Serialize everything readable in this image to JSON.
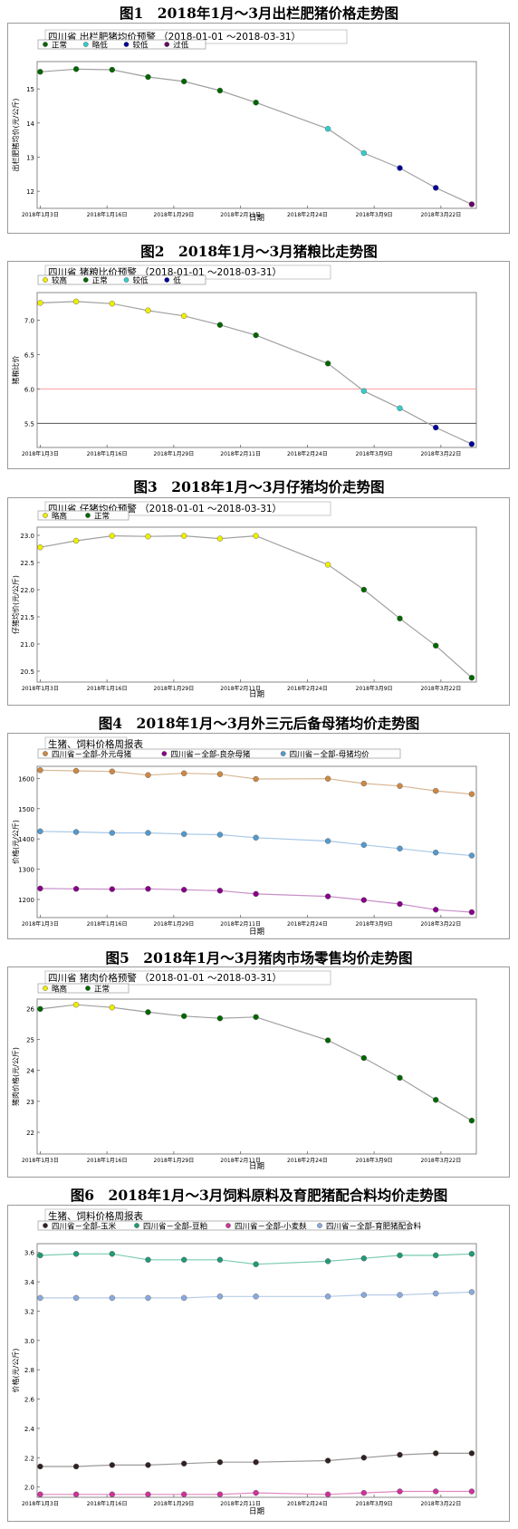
{
  "charts": [
    {
      "caption": "图1　2018年1月～3月出栏肥猪价格走势图",
      "chart_data": {
        "type": "line",
        "title": "四川省 出栏肥猪均价预警",
        "date_range": "（2018-01-01 ～2018-03-31）",
        "xlabel": "日期",
        "ylabel": "出栏肥猪均价(元/公斤)",
        "x_ticks": [
          "2018年1月3日",
          "2018年1月16日",
          "2018年1月29日",
          "2018年2月11日",
          "2018年2月24日",
          "2018年3月9日",
          "2018年3月22日"
        ],
        "y_ticks": [
          "12",
          "13",
          "14",
          "15"
        ],
        "ylim": [
          11.5,
          15.8
        ],
        "legend": [
          {
            "label": "正常",
            "color": "#006600"
          },
          {
            "label": "略低",
            "color": "#33cccc"
          },
          {
            "label": "较低",
            "color": "#000099"
          },
          {
            "label": "过低",
            "color": "#660066"
          }
        ],
        "thresholds": [],
        "series": [
          {
            "name": "",
            "line_color": "#a0a0a0",
            "x": [
              "2018-01-03",
              "2018-01-10",
              "2018-01-17",
              "2018-01-24",
              "2018-01-31",
              "2018-02-07",
              "2018-02-14",
              "2018-02-28",
              "2018-03-07",
              "2018-03-14",
              "2018-03-21",
              "2018-03-28"
            ],
            "values": [
              15.5,
              15.58,
              15.56,
              15.35,
              15.22,
              14.95,
              14.6,
              13.83,
              13.12,
              12.68,
              12.1,
              11.62
            ],
            "point_colors": [
              "#006600",
              "#006600",
              "#006600",
              "#006600",
              "#006600",
              "#006600",
              "#006600",
              "#33cccc",
              "#33cccc",
              "#000099",
              "#000099",
              "#660066"
            ]
          }
        ]
      }
    },
    {
      "caption": "图2　2018年1月～3月猪粮比走势图",
      "chart_data": {
        "type": "line",
        "title": "四川省 猪粮比价预警",
        "date_range": "（2018-01-01 ～2018-03-31）",
        "xlabel": "",
        "ylabel": "猪粮比价",
        "x_ticks": [
          "2018年1月3日",
          "2018年1月16日",
          "2018年1月29日",
          "2018年2月11日",
          "2018年2月24日",
          "2018年3月9日",
          "2018年3月22日"
        ],
        "y_ticks": [
          "5.5",
          "6.0",
          "6.5",
          "7.0"
        ],
        "ylim": [
          5.15,
          7.4
        ],
        "legend": [
          {
            "label": "较高",
            "color": "#eeee00"
          },
          {
            "label": "正常",
            "color": "#006600"
          },
          {
            "label": "较低",
            "color": "#33cccc"
          },
          {
            "label": "低",
            "color": "#000099"
          }
        ],
        "thresholds": [
          {
            "value": 6.0,
            "color": "#ff9999"
          },
          {
            "value": 5.5,
            "color": "#555555"
          }
        ],
        "series": [
          {
            "name": "",
            "line_color": "#a0a0a0",
            "x": [
              "2018-01-03",
              "2018-01-10",
              "2018-01-17",
              "2018-01-24",
              "2018-01-31",
              "2018-02-07",
              "2018-02-14",
              "2018-02-28",
              "2018-03-07",
              "2018-03-14",
              "2018-03-21",
              "2018-03-28"
            ],
            "values": [
              7.25,
              7.27,
              7.24,
              7.14,
              7.06,
              6.93,
              6.78,
              6.37,
              5.97,
              5.72,
              5.44,
              5.2
            ],
            "point_colors": [
              "#eeee00",
              "#eeee00",
              "#eeee00",
              "#eeee00",
              "#eeee00",
              "#006600",
              "#006600",
              "#006600",
              "#33cccc",
              "#33cccc",
              "#000099",
              "#000099"
            ]
          }
        ]
      }
    },
    {
      "caption": "图3　2018年1月～3月仔猪均价走势图",
      "chart_data": {
        "type": "line",
        "title": "四川省 仔猪均价预警",
        "date_range": "（2018-01-01 ～2018-03-31）",
        "xlabel": "日期",
        "ylabel": "仔猪均价(元/公斤)",
        "x_ticks": [
          "2018年1月3日",
          "2018年1月16日",
          "2018年1月29日",
          "2018年2月11日",
          "2018年2月24日",
          "2018年3月9日",
          "2018年3月22日"
        ],
        "y_ticks": [
          "20.5",
          "21.0",
          "21.5",
          "22.0",
          "22.5",
          "23.0"
        ],
        "ylim": [
          20.3,
          23.15
        ],
        "legend": [
          {
            "label": "略高",
            "color": "#eeee00"
          },
          {
            "label": "正常",
            "color": "#006600"
          }
        ],
        "thresholds": [],
        "series": [
          {
            "name": "",
            "line_color": "#a0a0a0",
            "x": [
              "2018-01-03",
              "2018-01-10",
              "2018-01-17",
              "2018-01-24",
              "2018-01-31",
              "2018-02-07",
              "2018-02-14",
              "2018-02-28",
              "2018-03-07",
              "2018-03-14",
              "2018-03-21",
              "2018-03-28"
            ],
            "values": [
              22.78,
              22.9,
              22.99,
              22.98,
              22.99,
              22.94,
              22.99,
              22.46,
              22.0,
              21.47,
              20.97,
              20.38
            ],
            "point_colors": [
              "#eeee00",
              "#eeee00",
              "#eeee00",
              "#eeee00",
              "#eeee00",
              "#eeee00",
              "#eeee00",
              "#eeee00",
              "#006600",
              "#006600",
              "#006600",
              "#006600"
            ]
          }
        ]
      }
    },
    {
      "caption": "图4　2018年1月～3月外三元后备母猪均价走势图",
      "chart_data": {
        "type": "line",
        "title": "生猪、饲料价格周报表",
        "date_range": "",
        "xlabel": "日期",
        "ylabel": "价格(元/公斤)",
        "x_ticks": [
          "2018年1月3日",
          "2018年1月16日",
          "2018年1月29日",
          "2018年2月11日",
          "2018年2月24日",
          "2018年3月9日",
          "2018年3月22日"
        ],
        "y_ticks": [
          "1200",
          "1300",
          "1400",
          "1500",
          "1600"
        ],
        "ylim": [
          1140,
          1640
        ],
        "legend": [
          {
            "label": "四川省－全部-外元母猪",
            "color": "#cc8844"
          },
          {
            "label": "四川省－全部-良杂母猪",
            "color": "#880088"
          },
          {
            "label": "四川省－全部-母猪均价",
            "color": "#5599cc"
          }
        ],
        "thresholds": [],
        "series": [
          {
            "name": "四川省－全部-外元母猪",
            "line_color": "#d8b896",
            "x": [
              "2018-01-03",
              "2018-01-10",
              "2018-01-17",
              "2018-01-24",
              "2018-01-31",
              "2018-02-07",
              "2018-02-14",
              "2018-02-28",
              "2018-03-07",
              "2018-03-14",
              "2018-03-21",
              "2018-03-28"
            ],
            "values": [
              1627,
              1625,
              1623,
              1611,
              1617,
              1614,
              1598,
              1599,
              1583,
              1575,
              1559,
              1548
            ],
            "point_colors": []
          },
          {
            "name": "四川省－全部-良杂母猪",
            "line_color": "#c890c8",
            "x": [
              "2018-01-03",
              "2018-01-10",
              "2018-01-17",
              "2018-01-24",
              "2018-01-31",
              "2018-02-07",
              "2018-02-14",
              "2018-02-28",
              "2018-03-07",
              "2018-03-14",
              "2018-03-21",
              "2018-03-28"
            ],
            "values": [
              1236,
              1235,
              1234,
              1235,
              1232,
              1229,
              1218,
              1210,
              1198,
              1185,
              1166,
              1158
            ],
            "point_colors": []
          },
          {
            "name": "四川省－全部-母猪均价",
            "line_color": "#a8c8e8",
            "x": [
              "2018-01-03",
              "2018-01-10",
              "2018-01-17",
              "2018-01-24",
              "2018-01-31",
              "2018-02-07",
              "2018-02-14",
              "2018-02-28",
              "2018-03-07",
              "2018-03-14",
              "2018-03-21",
              "2018-03-28"
            ],
            "values": [
              1425,
              1423,
              1420,
              1420,
              1416,
              1414,
              1404,
              1393,
              1380,
              1368,
              1355,
              1345
            ],
            "point_colors": []
          }
        ]
      }
    },
    {
      "caption": "图5　2018年1月～3月猪肉市场零售均价走势图",
      "chart_data": {
        "type": "line",
        "title": "四川省 猪肉价格预警",
        "date_range": "（2018-01-01 ～2018-03-31）",
        "xlabel": "日期",
        "ylabel": "猪肉价格(元/公斤)",
        "x_ticks": [
          "2018年1月3日",
          "2018年1月16日",
          "2018年1月29日",
          "2018年2月11日",
          "2018年2月24日",
          "2018年3月9日",
          "2018年3月22日"
        ],
        "y_ticks": [
          "22",
          "23",
          "24",
          "25",
          "26"
        ],
        "ylim": [
          21.3,
          26.3
        ],
        "legend": [
          {
            "label": "略高",
            "color": "#eeee00"
          },
          {
            "label": "正常",
            "color": "#006600"
          }
        ],
        "thresholds": [],
        "series": [
          {
            "name": "",
            "line_color": "#a0a0a0",
            "x": [
              "2018-01-03",
              "2018-01-10",
              "2018-01-17",
              "2018-01-24",
              "2018-01-31",
              "2018-02-07",
              "2018-02-14",
              "2018-02-28",
              "2018-03-07",
              "2018-03-14",
              "2018-03-21",
              "2018-03-28"
            ],
            "values": [
              25.98,
              26.12,
              26.03,
              25.88,
              25.75,
              25.68,
              25.72,
              24.97,
              24.4,
              23.76,
              23.05,
              22.38
            ],
            "point_colors": [
              "#006600",
              "#eeee00",
              "#eeee00",
              "#006600",
              "#006600",
              "#006600",
              "#006600",
              "#006600",
              "#006600",
              "#006600",
              "#006600",
              "#006600"
            ]
          }
        ]
      }
    },
    {
      "caption": "图6　2018年1月～3月饲料原料及育肥猪配合料均价走势图",
      "chart_data": {
        "type": "line",
        "title": "生猪、饲料价格周报表",
        "date_range": "",
        "xlabel": "日期",
        "ylabel": "价格(元/公斤)",
        "x_ticks": [
          "2018年1月3日",
          "2018年1月16日",
          "2018年1月29日",
          "2018年2月11日",
          "2018年2月24日",
          "2018年3月9日",
          "2018年3月22日"
        ],
        "y_ticks": [
          "2.0",
          "2.2",
          "2.4",
          "2.6",
          "2.8",
          "3.0",
          "3.2",
          "3.4",
          "3.6"
        ],
        "ylim": [
          1.93,
          3.66
        ],
        "legend": [
          {
            "label": "四川省－全部-玉米",
            "color": "#332222"
          },
          {
            "label": "四川省－全部-豆粕",
            "color": "#229977"
          },
          {
            "label": "四川省－全部-小麦麸",
            "color": "#cc3399"
          },
          {
            "label": "四川省－全部-育肥猪配合料",
            "color": "#88aadd"
          }
        ],
        "thresholds": [],
        "series": [
          {
            "name": "四川省－全部-玉米",
            "line_color": "#999999",
            "x": [
              "2018-01-03",
              "2018-01-10",
              "2018-01-17",
              "2018-01-24",
              "2018-01-31",
              "2018-02-07",
              "2018-02-14",
              "2018-02-28",
              "2018-03-07",
              "2018-03-14",
              "2018-03-21",
              "2018-03-28"
            ],
            "values": [
              2.14,
              2.14,
              2.15,
              2.15,
              2.16,
              2.17,
              2.17,
              2.18,
              2.2,
              2.22,
              2.23,
              2.23
            ],
            "point_colors": []
          },
          {
            "name": "四川省－全部-豆粕",
            "line_color": "#7acbb0",
            "x": [
              "2018-01-03",
              "2018-01-10",
              "2018-01-17",
              "2018-01-24",
              "2018-01-31",
              "2018-02-07",
              "2018-02-14",
              "2018-02-28",
              "2018-03-07",
              "2018-03-14",
              "2018-03-21",
              "2018-03-28"
            ],
            "values": [
              3.58,
              3.59,
              3.59,
              3.55,
              3.55,
              3.55,
              3.52,
              3.54,
              3.56,
              3.58,
              3.58,
              3.59
            ],
            "point_colors": []
          },
          {
            "name": "四川省－全部-小麦麸",
            "line_color": "#e088c0",
            "x": [
              "2018-01-03",
              "2018-01-10",
              "2018-01-17",
              "2018-01-24",
              "2018-01-31",
              "2018-02-07",
              "2018-02-14",
              "2018-02-28",
              "2018-03-07",
              "2018-03-14",
              "2018-03-21",
              "2018-03-28"
            ],
            "values": [
              1.95,
              1.95,
              1.95,
              1.95,
              1.95,
              1.95,
              1.96,
              1.95,
              1.96,
              1.97,
              1.97,
              1.97
            ],
            "point_colors": []
          },
          {
            "name": "四川省－全部-育肥猪配合料",
            "line_color": "#b8cce8",
            "x": [
              "2018-01-03",
              "2018-01-10",
              "2018-01-17",
              "2018-01-24",
              "2018-01-31",
              "2018-02-07",
              "2018-02-14",
              "2018-02-28",
              "2018-03-07",
              "2018-03-14",
              "2018-03-21",
              "2018-03-28"
            ],
            "values": [
              3.29,
              3.29,
              3.29,
              3.29,
              3.29,
              3.3,
              3.3,
              3.3,
              3.31,
              3.31,
              3.32,
              3.33
            ],
            "point_colors": []
          }
        ]
      }
    }
  ]
}
